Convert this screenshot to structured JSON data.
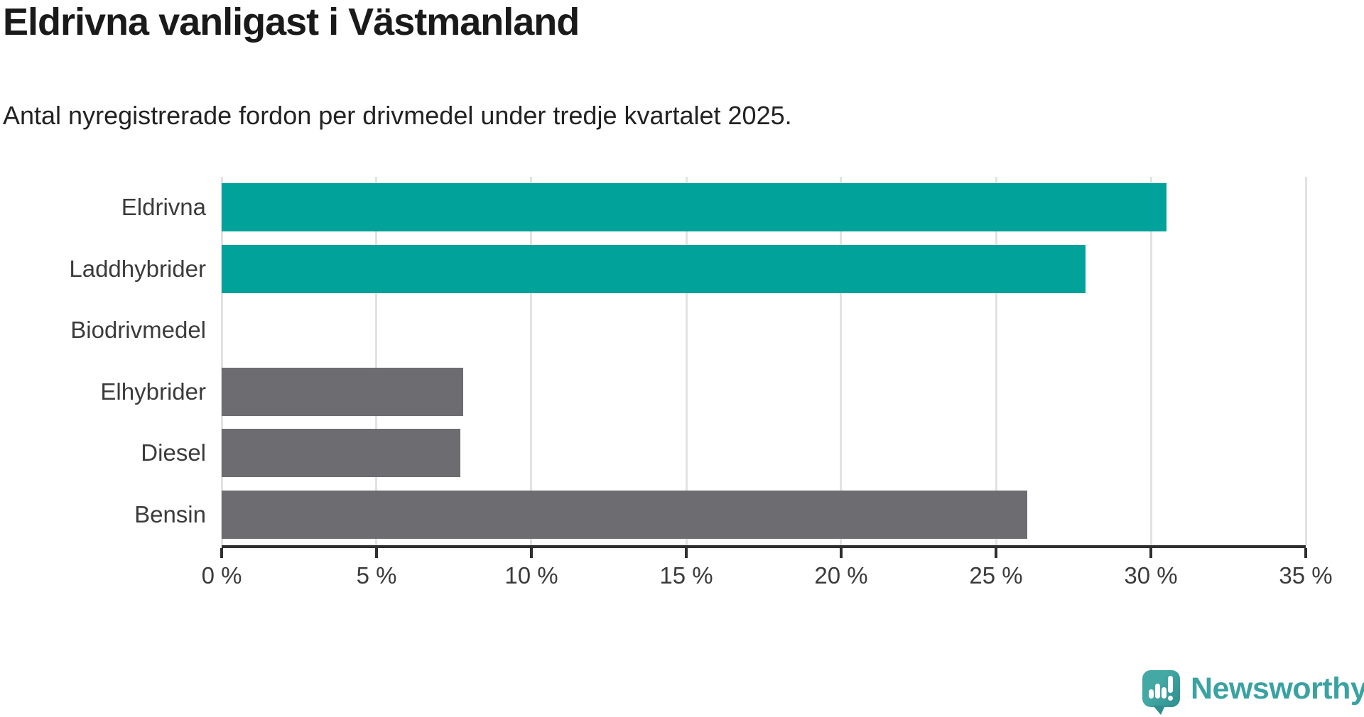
{
  "header": {
    "title": "Eldrivna vanligast i Västmanland",
    "subtitle": "Antal nyregistrerade fordon per drivmedel under tredje kvartalet 2025."
  },
  "chart_data": {
    "type": "bar",
    "orientation": "horizontal",
    "categories": [
      "Eldrivna",
      "Laddhybrider",
      "Biodrivmedel",
      "Elhybrider",
      "Diesel",
      "Bensin"
    ],
    "values": [
      30.5,
      27.9,
      0,
      7.8,
      7.7,
      26.0
    ],
    "unit": "%",
    "xlim": [
      0,
      35
    ],
    "xticks": [
      0,
      5,
      10,
      15,
      20,
      25,
      30,
      35
    ],
    "xtick_labels": [
      "0 %",
      "5 %",
      "10 %",
      "15 %",
      "20 %",
      "25 %",
      "30 %",
      "35 %"
    ],
    "highlighted_categories": [
      "Eldrivna",
      "Laddhybrider"
    ],
    "grid": "vertical",
    "legend": "none",
    "colors": {
      "highlight": "#00a29a",
      "default": "#6c6c71",
      "gridline": "#e2e2e2",
      "axis": "#2f2f2f",
      "tick_text": "#3b3b3b",
      "title_text": "#1a1a1a"
    }
  },
  "branding": {
    "logo_text": "Newsworthy",
    "logo_color": "#3ba2a2",
    "logo_icon": "speech-bubble-bar-chart-exclamation"
  }
}
